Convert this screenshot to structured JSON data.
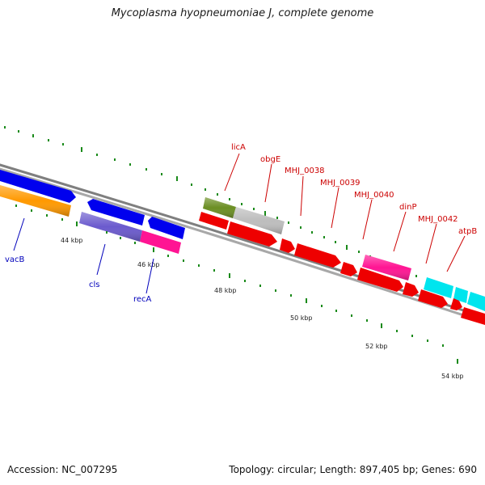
{
  "title": "Mycoplasma hyopneumoniae J, complete genome",
  "footer": {
    "accession": "Accession: NC_007295",
    "summary": "Topology: circular; Length: 897,405 bp; Genes: 690"
  },
  "colors": {
    "label_red": "#cc0000",
    "label_blue": "#0000bb",
    "tick_green": "#1a8a1a",
    "backbone": "#888888"
  },
  "scale_labels": [
    "44 kbp",
    "46 kbp",
    "48 kbp",
    "50 kbp",
    "52 kbp",
    "54 kbp"
  ],
  "gene_labels": [
    {
      "id": "licA",
      "text": "licA",
      "color": "red"
    },
    {
      "id": "obgE",
      "text": "obgE",
      "color": "red"
    },
    {
      "id": "MHJ_0038",
      "text": "MHJ_0038",
      "color": "red"
    },
    {
      "id": "MHJ_0039",
      "text": "MHJ_0039",
      "color": "red"
    },
    {
      "id": "MHJ_0040",
      "text": "MHJ_0040",
      "color": "red"
    },
    {
      "id": "dinP",
      "text": "dinP",
      "color": "red"
    },
    {
      "id": "MHJ_0042",
      "text": "MHJ_0042",
      "color": "red"
    },
    {
      "id": "atpB",
      "text": "atpB",
      "color": "red"
    },
    {
      "id": "vacB",
      "text": "vacB",
      "color": "blue"
    },
    {
      "id": "cls",
      "text": "cls",
      "color": "blue"
    },
    {
      "id": "recA",
      "text": "recA",
      "color": "blue"
    }
  ],
  "features": [
    {
      "name": "feature-orange",
      "color": "#ff9900",
      "strand": "reverse"
    },
    {
      "name": "feature-blue-1",
      "color": "#0000ee",
      "strand": "reverse"
    },
    {
      "name": "feature-blue-2",
      "color": "#0000ee",
      "strand": "reverse"
    },
    {
      "name": "feature-blue-3",
      "color": "#0000ee",
      "strand": "reverse"
    },
    {
      "name": "feature-cls",
      "color": "#6a5acd",
      "strand": "reverse"
    },
    {
      "name": "feature-recA",
      "color": "#ff1493",
      "strand": "reverse"
    },
    {
      "name": "feature-licA",
      "color": "#6b8e23",
      "strand": "forward"
    },
    {
      "name": "feature-obgE",
      "color": "#bbbbbb",
      "strand": "forward"
    },
    {
      "name": "feature-dinP",
      "color": "#ff1493",
      "strand": "forward"
    },
    {
      "name": "feature-atp",
      "color": "#00e5ee",
      "strand": "forward"
    },
    {
      "name": "feature-red",
      "color": "#ee0000",
      "strand": "forward"
    }
  ]
}
